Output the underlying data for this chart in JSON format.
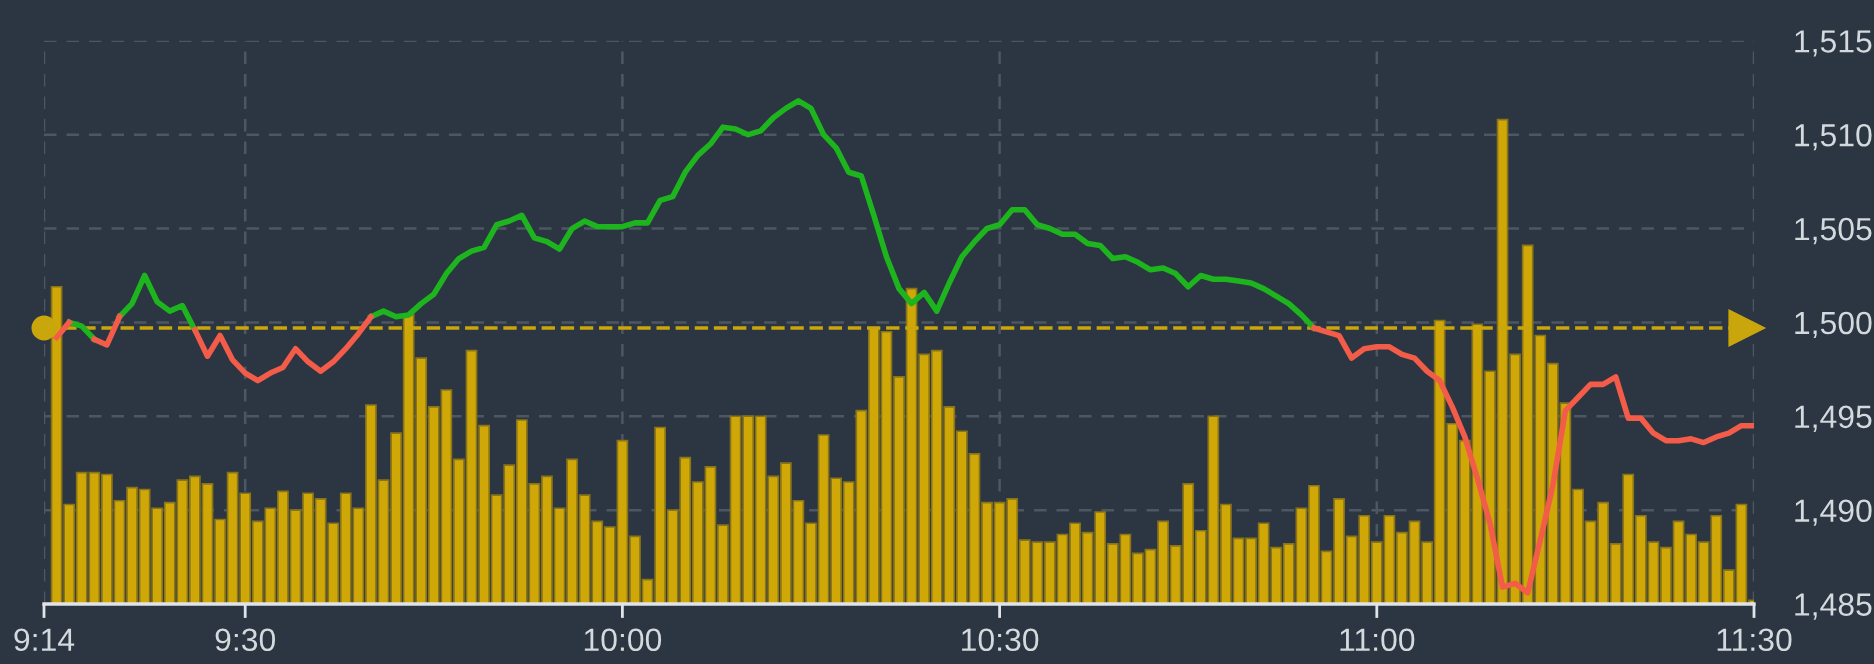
{
  "chart_data": {
    "type": "bar",
    "x": [
      9.25,
      9.2667,
      9.2833,
      9.3,
      9.3167,
      9.3333,
      9.35,
      9.3667,
      9.3833,
      9.4,
      9.4167,
      9.4333,
      9.45,
      9.4667,
      9.4833,
      9.5,
      9.5167,
      9.5333,
      9.55,
      9.5667,
      9.5833,
      9.6,
      9.6167,
      9.6333,
      9.65,
      9.6667,
      9.6833,
      9.7,
      9.7167,
      9.7333,
      9.75,
      9.7667,
      9.7833,
      9.8,
      9.8167,
      9.8333,
      9.85,
      9.8667,
      9.8833,
      9.9,
      9.9167,
      9.9333,
      9.95,
      9.9667,
      9.9833,
      10,
      10.0167,
      10.0333,
      10.05,
      10.0667,
      10.0833,
      10.1,
      10.1167,
      10.1333,
      10.15,
      10.1667,
      10.1833,
      10.2,
      10.2167,
      10.2333,
      10.25,
      10.2667,
      10.2833,
      10.3,
      10.3167,
      10.3333,
      10.35,
      10.3667,
      10.3833,
      10.4,
      10.4167,
      10.4333,
      10.45,
      10.4667,
      10.4833,
      10.5,
      10.5167,
      10.5333,
      10.55,
      10.5667,
      10.5833,
      10.6,
      10.6167,
      10.6333,
      10.65,
      10.6667,
      10.6833,
      10.7,
      10.7167,
      10.7333,
      10.75,
      10.7667,
      10.7833,
      10.8,
      10.8167,
      10.8333,
      10.85,
      10.8667,
      10.8833,
      10.9,
      10.9167,
      10.9333,
      10.95,
      10.9667,
      10.9833,
      11,
      11.0167,
      11.0333,
      11.05,
      11.0667,
      11.0833,
      11.1,
      11.1167,
      11.1333,
      11.15,
      11.1667,
      11.1833,
      11.2,
      11.2167,
      11.2333,
      11.25,
      11.2667,
      11.2833,
      11.3,
      11.3167,
      11.3333,
      11.35,
      11.3667,
      11.3833,
      11.4,
      11.4167,
      11.4333,
      11.45,
      11.4667,
      11.4833,
      11.5
    ],
    "series": [
      {
        "color": "#cfa808",
        "values": [
          1501.9,
          1490.3,
          1492.0,
          1492.0,
          1491.9,
          1490.5,
          1491.2,
          1491.1,
          1490.1,
          1490.4,
          1491.6,
          1491.8,
          1491.4,
          1489.5,
          1492.0,
          1490.9,
          1489.4,
          1490.1,
          1491.0,
          1490.0,
          1490.9,
          1490.6,
          1489.3,
          1490.9,
          1490.1,
          1495.6,
          1491.6,
          1494.1,
          1500.4,
          1498.1,
          1495.5,
          1496.4,
          1492.7,
          1498.5,
          1494.5,
          1490.8,
          1492.4,
          1494.8,
          1491.4,
          1491.8,
          1490.1,
          1492.7,
          1490.8,
          1489.4,
          1489.1,
          1493.7,
          1488.6,
          1486.3,
          1494.4,
          1490.0,
          1492.8,
          1491.5,
          1492.3,
          1489.2,
          1495.0,
          1495.0,
          1495.0,
          1491.8,
          1492.5,
          1490.5,
          1489.3,
          1494.0,
          1491.7,
          1491.5,
          1495.3,
          1499.7,
          1499.5,
          1497.1,
          1501.8,
          1498.3,
          1498.5,
          1495.5,
          1494.2,
          1493.0,
          1490.4,
          1490.4,
          1490.6,
          1488.4,
          1488.3,
          1488.3,
          1488.7,
          1489.3,
          1488.8,
          1489.9,
          1488.2,
          1488.7,
          1487.7,
          1487.9,
          1489.4,
          1488.1,
          1491.4,
          1488.9,
          1495.0,
          1490.3,
          1488.5,
          1488.5,
          1489.3,
          1488.0,
          1488.2,
          1490.1,
          1491.3,
          1487.8,
          1490.6,
          1488.6,
          1489.7,
          1488.3,
          1489.7,
          1488.8,
          1489.4,
          1488.3,
          1500.1,
          1494.6,
          1493.7,
          1499.9,
          1497.4,
          1510.8,
          1498.3,
          1504.1,
          1499.3,
          1497.8,
          1495.7,
          1491.1,
          1489.4,
          1490.4,
          1488.2,
          1491.9,
          1489.7,
          1488.3,
          1488.0,
          1489.4,
          1488.7,
          1488.3,
          1489.7,
          1486.8,
          1490.3,
          1485.2
        ]
      },
      {
        "type": "line",
        "color": "#1db41d",
        "values": [
          null,
          1500.0,
          1499.8,
          1499.1,
          null,
          1500.3,
          1501.0,
          1502.5,
          1501.1,
          1500.6,
          1500.9,
          1499.6,
          null,
          null,
          null,
          null,
          null,
          null,
          null,
          null,
          null,
          null,
          null,
          null,
          null,
          1500.3,
          1500.6,
          1500.3,
          1500.4,
          1501.0,
          1501.5,
          1502.6,
          1503.4,
          1503.8,
          1504.0,
          1505.2,
          1505.4,
          1505.7,
          1504.5,
          1504.3,
          1503.9,
          1505.0,
          1505.4,
          1505.1,
          1505.1,
          1505.1,
          1505.3,
          1505.3,
          1506.5,
          1506.7,
          1508.0,
          1508.9,
          1509.5,
          1510.4,
          1510.3,
          1510.0,
          1510.2,
          1510.9,
          1511.4,
          1511.8,
          1511.4,
          1510.0,
          1509.3,
          1508.0,
          1507.8,
          1505.7,
          1503.5,
          1501.8,
          1501.0,
          1501.6,
          1500.6,
          1502.1,
          1503.5,
          1504.3,
          1505.0,
          1505.2,
          1506.0,
          1506.0,
          1505.2,
          1505.0,
          1504.7,
          1504.7,
          1504.2,
          1504.1,
          1503.4,
          1503.5,
          1503.2,
          1502.8,
          1502.9,
          1502.6,
          1501.9,
          1502.5,
          1502.3,
          1502.3,
          1502.2,
          1502.1,
          1501.8,
          1501.4,
          1501.0,
          1500.4,
          1499.7,
          null,
          null,
          null,
          null,
          null,
          null,
          null,
          null,
          null,
          null,
          null,
          null,
          null,
          null,
          null,
          null,
          null,
          null,
          null,
          null,
          null,
          null,
          null,
          null,
          null,
          null,
          null,
          null,
          null,
          null,
          null,
          null,
          null,
          null,
          null
        ]
      },
      {
        "type": "line",
        "color": "#f25c48",
        "values": [
          1499.2,
          1500.0,
          null,
          1499.1,
          1498.8,
          1500.3,
          null,
          null,
          null,
          null,
          null,
          1499.6,
          1498.2,
          1499.3,
          1498.0,
          1497.3,
          1496.9,
          1497.3,
          1497.6,
          1498.6,
          1497.9,
          1497.4,
          1497.9,
          1498.6,
          1499.4,
          1500.3,
          null,
          null,
          null,
          null,
          null,
          null,
          null,
          null,
          null,
          null,
          null,
          null,
          null,
          null,
          null,
          null,
          null,
          null,
          null,
          null,
          null,
          null,
          null,
          null,
          null,
          null,
          null,
          null,
          null,
          null,
          null,
          null,
          null,
          null,
          null,
          null,
          null,
          null,
          null,
          null,
          null,
          null,
          null,
          null,
          null,
          null,
          null,
          null,
          null,
          null,
          null,
          null,
          null,
          null,
          null,
          null,
          null,
          null,
          null,
          null,
          null,
          null,
          null,
          null,
          null,
          null,
          null,
          null,
          null,
          null,
          null,
          null,
          null,
          null,
          1499.7,
          1499.5,
          1499.3,
          1498.1,
          1498.6,
          1498.7,
          1498.7,
          1498.3,
          1498.1,
          1497.4,
          1496.9,
          1495.5,
          1493.9,
          1491.7,
          1489.3,
          1485.9,
          1486.1,
          1485.6,
          1488.4,
          1491.3,
          1495.3,
          1496.0,
          1496.7,
          1496.7,
          1497.1,
          1494.9,
          1494.9,
          1494.1,
          1493.7,
          1493.7,
          1493.8,
          1493.6,
          1493.9,
          1494.1,
          1494.5,
          1494.5
        ]
      }
    ],
    "xlim": [
      9.2333,
      11.5
    ],
    "xticks": [
      {
        "value": 9.2333,
        "label": "9:14"
      },
      {
        "value": 9.5,
        "label": "9:30"
      },
      {
        "value": 10,
        "label": "10:00"
      },
      {
        "value": 10.5,
        "label": "10:30"
      },
      {
        "value": 11,
        "label": "11:00"
      },
      {
        "value": 11.5,
        "label": "11:30"
      }
    ],
    "ylim": [
      1485,
      1515
    ],
    "yticks": [
      {
        "value": 1485,
        "label": "1,485"
      },
      {
        "value": 1490,
        "label": "1,490"
      },
      {
        "value": 1495,
        "label": "1,495"
      },
      {
        "value": 1500,
        "label": "1,500"
      },
      {
        "value": 1505,
        "label": "1,505"
      },
      {
        "value": 1510,
        "label": "1,510"
      },
      {
        "value": 1515,
        "label": "1,515"
      }
    ],
    "ref_lines": [
      {
        "axis": "y",
        "value": 1499.7,
        "color": "#c9a60c",
        "line_style": "dashed"
      }
    ],
    "grid": true,
    "marker": "none",
    "line_style": "solid",
    "legend": false
  }
}
